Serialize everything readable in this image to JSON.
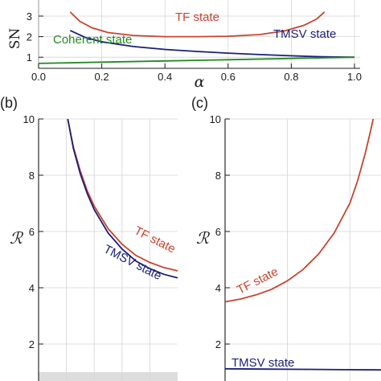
{
  "colors": {
    "tf": "#c8442e",
    "tmsv": "#1b1f7a",
    "coherent": "#228b22",
    "shade": "#dddddd"
  },
  "chart_data": [
    {
      "panel": "a",
      "type": "line",
      "title": "",
      "xlabel": "α",
      "ylabel": "SN",
      "xlim": [
        0,
        1
      ],
      "ylim": [
        0.5,
        3.2
      ],
      "xticks": [
        "0.0",
        "0.2",
        "0.4",
        "0.6",
        "0.8",
        "1.0"
      ],
      "yticks": [
        "1",
        "2",
        "3"
      ],
      "grid": true,
      "series": [
        {
          "name": "TF state",
          "color_key": "tf",
          "x": [
            0.1,
            0.13,
            0.17,
            0.22,
            0.3,
            0.4,
            0.5,
            0.6,
            0.7,
            0.78,
            0.84,
            0.88,
            0.905
          ],
          "y": [
            3.2,
            2.75,
            2.42,
            2.2,
            2.06,
            2.0,
            2.0,
            2.02,
            2.1,
            2.28,
            2.55,
            2.85,
            3.2
          ]
        },
        {
          "name": "TMSV state",
          "color_key": "tmsv",
          "x": [
            0.1,
            0.15,
            0.2,
            0.3,
            0.4,
            0.5,
            0.6,
            0.7,
            0.8,
            0.9,
            1.0
          ],
          "y": [
            2.3,
            1.95,
            1.75,
            1.52,
            1.38,
            1.28,
            1.2,
            1.13,
            1.07,
            1.02,
            1.0
          ]
        },
        {
          "name": "Coherent state",
          "color_key": "coherent",
          "x": [
            0.0,
            0.2,
            0.4,
            0.6,
            0.8,
            1.0
          ],
          "y": [
            0.7,
            0.76,
            0.82,
            0.88,
            0.94,
            1.0
          ]
        }
      ]
    },
    {
      "panel": "b",
      "label": "(b)",
      "type": "line",
      "title": "",
      "xlabel": "",
      "ylabel": "ℛ",
      "ylim": [
        1,
        10
      ],
      "yticks": [
        "2",
        "4",
        "6",
        "8",
        "10"
      ],
      "grid": true,
      "shaded_band": [
        1,
        1.2
      ],
      "series": [
        {
          "name": "TF state",
          "color_key": "tf",
          "x": [
            0.21,
            0.25,
            0.3,
            0.35,
            0.4,
            0.5,
            0.6,
            0.7,
            0.8,
            0.9,
            1.0
          ],
          "y": [
            10.0,
            9.0,
            8.15,
            7.45,
            6.9,
            6.1,
            5.55,
            5.15,
            4.9,
            4.72,
            4.6
          ]
        },
        {
          "name": "TMSV state",
          "color_key": "tmsv",
          "x": [
            0.21,
            0.25,
            0.3,
            0.35,
            0.4,
            0.5,
            0.6,
            0.7,
            0.8,
            0.9,
            1.0
          ],
          "y": [
            10.0,
            8.95,
            8.05,
            7.35,
            6.78,
            5.95,
            5.38,
            4.95,
            4.68,
            4.48,
            4.35
          ]
        }
      ],
      "labels": [
        "TF state",
        "TMSV state"
      ]
    },
    {
      "panel": "c",
      "label": "(c)",
      "type": "line",
      "title": "",
      "xlabel": "",
      "ylabel": "ℛ",
      "ylim": [
        1,
        10
      ],
      "yticks": [
        "2",
        "4",
        "6",
        "8",
        "10"
      ],
      "grid": true,
      "series": [
        {
          "name": "TF state",
          "color_key": "tf",
          "x": [
            0.0,
            0.1,
            0.2,
            0.3,
            0.4,
            0.5,
            0.6,
            0.7,
            0.8,
            0.85,
            0.9,
            0.93,
            0.95
          ],
          "y": [
            3.5,
            3.6,
            3.75,
            3.95,
            4.25,
            4.65,
            5.2,
            5.95,
            7.0,
            7.8,
            8.8,
            9.5,
            10.0
          ]
        },
        {
          "name": "TMSV state",
          "color_key": "tmsv",
          "x": [
            0.0,
            0.25,
            0.5,
            0.75,
            1.0
          ],
          "y": [
            1.12,
            1.11,
            1.1,
            1.09,
            1.08
          ]
        }
      ],
      "labels": [
        "TF state",
        "TMSV state"
      ]
    }
  ]
}
